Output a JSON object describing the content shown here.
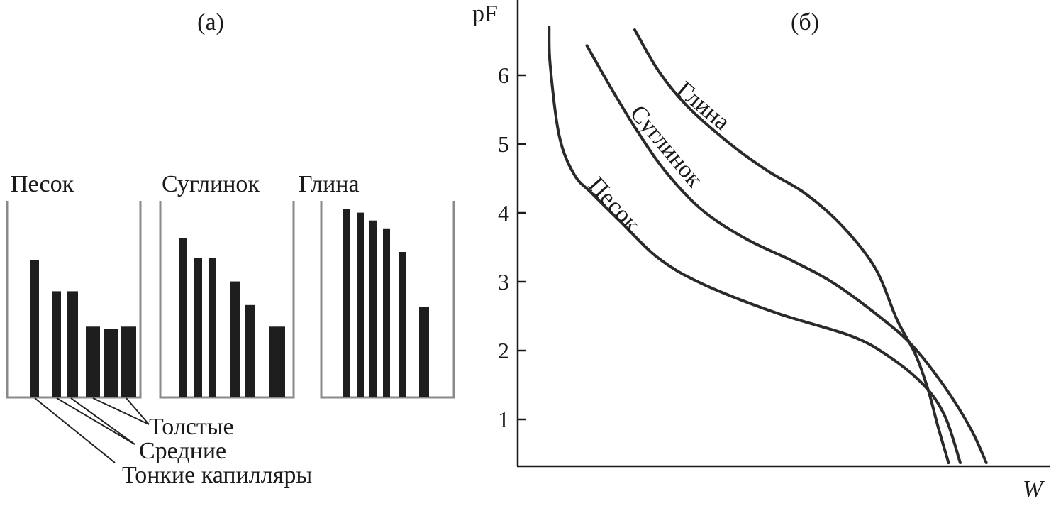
{
  "chart_data": [
    {
      "type": "bar",
      "title": "(а)",
      "panels": [
        {
          "name": "Песок",
          "values": [
            70,
            54,
            54,
            36,
            35,
            36
          ]
        },
        {
          "name": "Суглинок",
          "values": [
            81,
            71,
            71,
            59,
            47,
            36
          ]
        },
        {
          "name": "Глина",
          "values": [
            96,
            94,
            90,
            86,
            74,
            46
          ]
        }
      ],
      "annotations": [
        "Толстые",
        "Средние",
        "Тонкие капилляры"
      ],
      "color": "#1e1e1e"
    },
    {
      "type": "line",
      "title": "(б)",
      "xlabel": "W",
      "ylabel": "pF",
      "ylim": [
        0.33,
        7.1
      ],
      "xlim": [
        0,
        100
      ],
      "yticks": [
        1,
        2,
        3,
        4,
        5,
        6
      ],
      "grid": false,
      "series": [
        {
          "name": "Песок",
          "points": [
            [
              5.9,
              6.7
            ],
            [
              6.1,
              6.15
            ],
            [
              7.8,
              5.12
            ],
            [
              10.6,
              4.56
            ],
            [
              14.0,
              4.28
            ],
            [
              19.5,
              3.86
            ],
            [
              26.5,
              3.34
            ],
            [
              34.7,
              2.97
            ],
            [
              48.5,
              2.55
            ],
            [
              62.4,
              2.22
            ],
            [
              69.3,
              1.94
            ],
            [
              76.2,
              1.51
            ],
            [
              80.3,
              1.05
            ],
            [
              83.2,
              0.37
            ]
          ]
        },
        {
          "name": "Суглинок",
          "points": [
            [
              13.0,
              6.43
            ],
            [
              17.5,
              5.82
            ],
            [
              22.3,
              5.21
            ],
            [
              27.8,
              4.6
            ],
            [
              34.7,
              4.04
            ],
            [
              43.0,
              3.62
            ],
            [
              52.0,
              3.29
            ],
            [
              59.6,
              2.97
            ],
            [
              67.9,
              2.5
            ],
            [
              74.1,
              2.08
            ],
            [
              80.3,
              1.47
            ],
            [
              85.2,
              0.86
            ],
            [
              88.1,
              0.37
            ]
          ]
        },
        {
          "name": "Глина",
          "points": [
            [
              22.0,
              6.66
            ],
            [
              26.5,
              6.06
            ],
            [
              32.0,
              5.54
            ],
            [
              40.3,
              4.98
            ],
            [
              47.2,
              4.6
            ],
            [
              54.1,
              4.28
            ],
            [
              61.0,
              3.81
            ],
            [
              67.2,
              3.2
            ],
            [
              71.3,
              2.45
            ],
            [
              74.8,
              1.94
            ],
            [
              77.2,
              1.42
            ],
            [
              79.0,
              0.9
            ],
            [
              81.0,
              0.37
            ]
          ]
        }
      ],
      "color": "#2a2a2a"
    }
  ]
}
